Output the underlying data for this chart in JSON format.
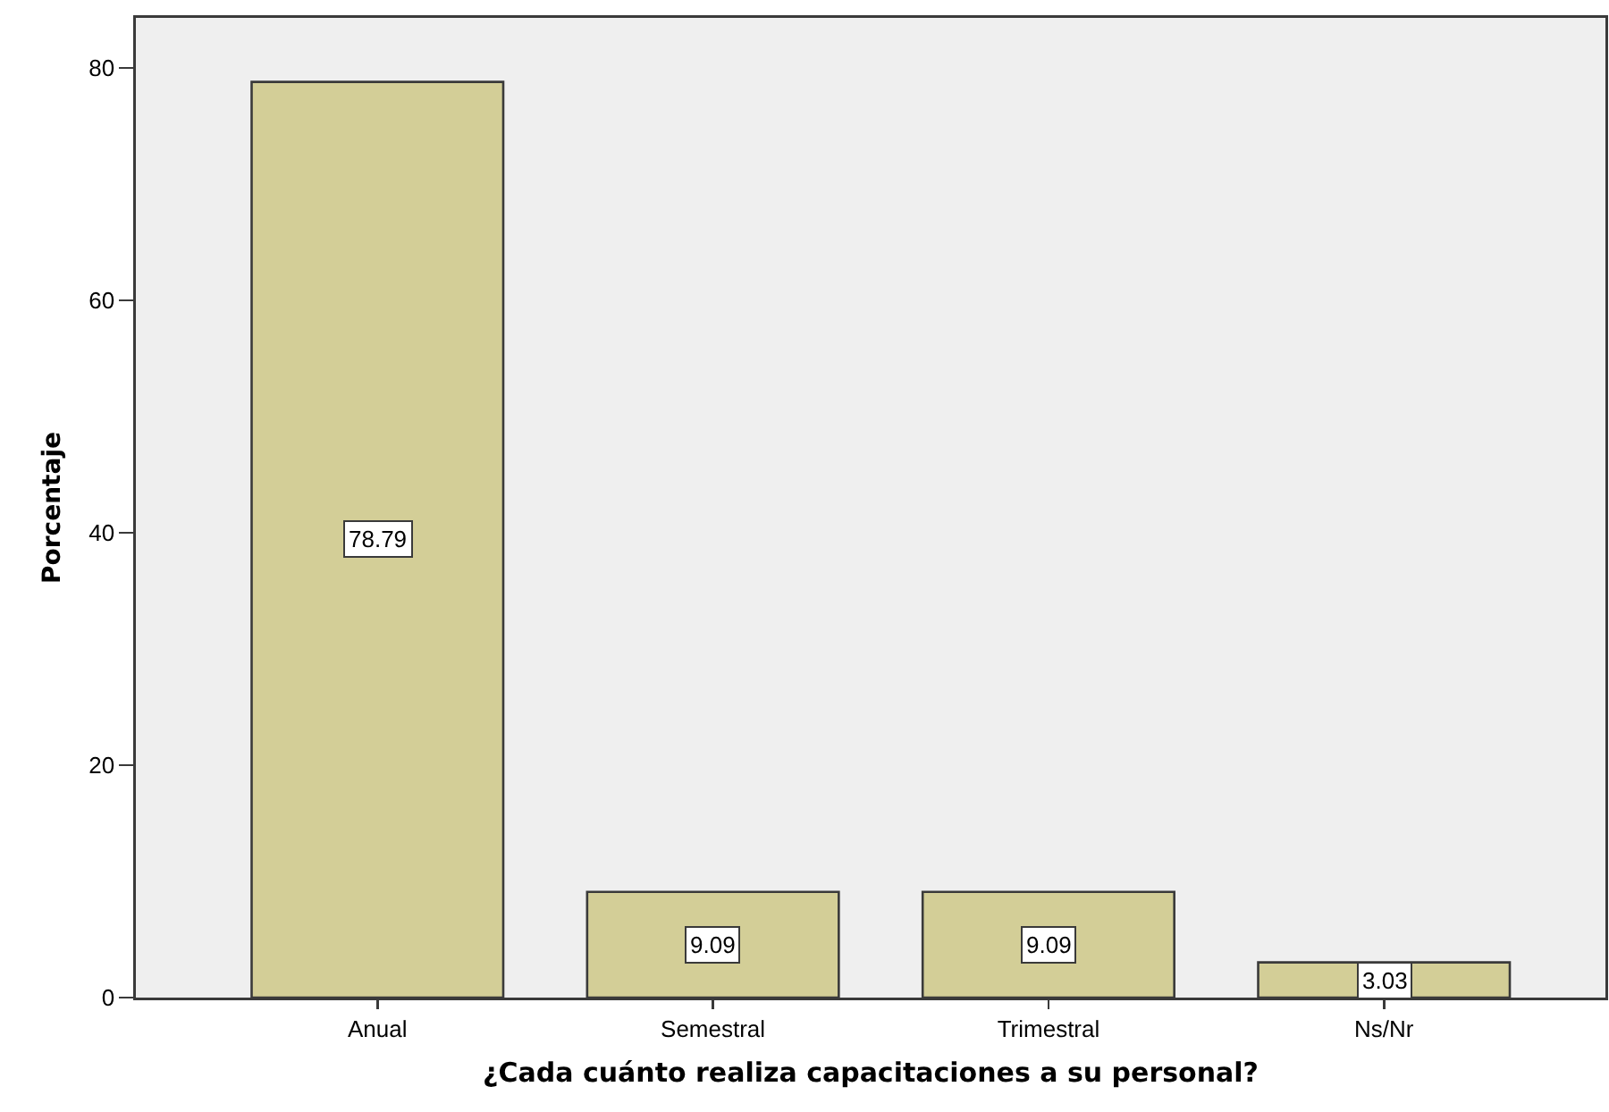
{
  "chart_data": {
    "type": "bar",
    "xlabel": "¿Cada cuánto realiza capacitaciones a su personal?",
    "ylabel": "Porcentaje",
    "categories": [
      "Anual",
      "Semestral",
      "Trimestral",
      "Ns/Nr"
    ],
    "values": [
      78.79,
      9.09,
      9.09,
      3.03
    ],
    "color": "#d3ce97",
    "ylim": [
      0,
      84.3
    ],
    "yticks": [
      0,
      20,
      40,
      60,
      80
    ],
    "grid": false,
    "data_labels": true
  }
}
